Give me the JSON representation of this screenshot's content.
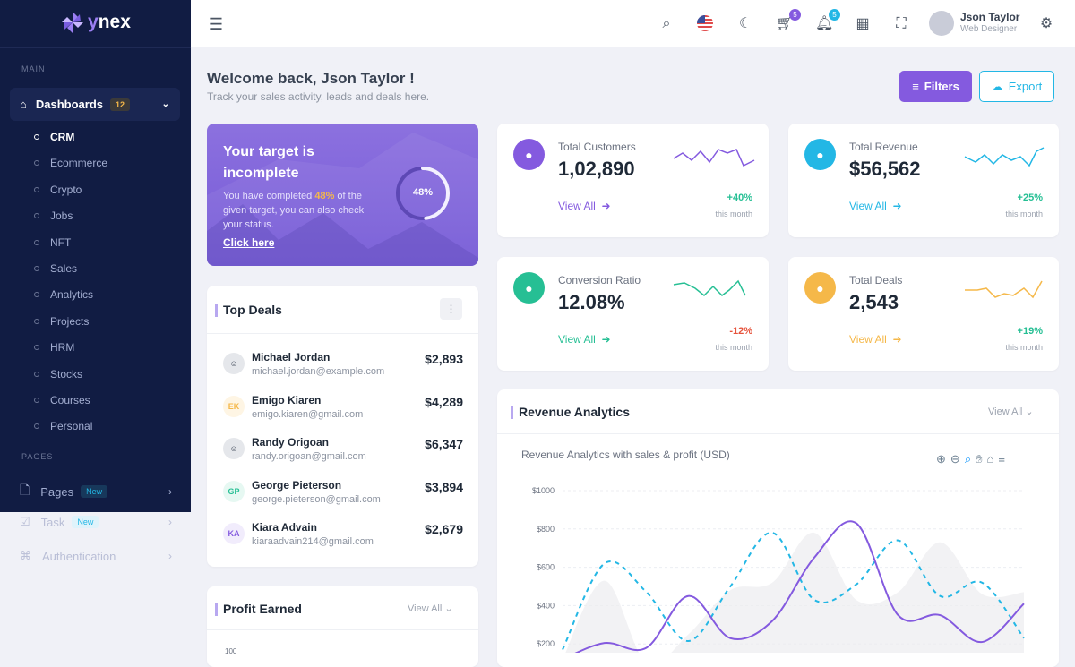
{
  "brand": {
    "name_prefix": "y",
    "name": "nex"
  },
  "sidebar": {
    "main_label": "MAIN",
    "dashboards": {
      "label": "Dashboards",
      "badge": "12"
    },
    "sub_items": [
      {
        "label": "CRM",
        "active": true
      },
      {
        "label": "Ecommerce"
      },
      {
        "label": "Crypto"
      },
      {
        "label": "Jobs"
      },
      {
        "label": "NFT"
      },
      {
        "label": "Sales"
      },
      {
        "label": "Analytics"
      },
      {
        "label": "Projects"
      },
      {
        "label": "HRM"
      },
      {
        "label": "Stocks"
      },
      {
        "label": "Courses"
      },
      {
        "label": "Personal"
      }
    ],
    "pages_label": "PAGES",
    "pages_items": [
      {
        "label": "Pages",
        "badge": "New",
        "icon": "file-icon"
      },
      {
        "label": "Task",
        "badge": "New",
        "icon": "task-icon"
      },
      {
        "label": "Authentication",
        "icon": "fingerprint-icon"
      }
    ]
  },
  "header": {
    "cart_count": "5",
    "notif_count": "5",
    "user_name": "Json Taylor",
    "user_role": "Web Designer"
  },
  "welcome": {
    "title": "Welcome back, Json Taylor !",
    "subtitle": "Track your sales activity, leads and deals here.",
    "filters": "Filters",
    "export": "Export"
  },
  "target": {
    "title": "Your target is incomplete",
    "text_pre": "You have completed ",
    "pct_text": "48%",
    "text_post": " of the given target, you can also check your status.",
    "link": "Click here",
    "progress": 48
  },
  "stats": [
    {
      "label": "Total Customers",
      "value": "1,02,890",
      "link": "View All",
      "change": "+40%",
      "period": "this month",
      "color": "#845adf",
      "change_color": "#26bf94",
      "icon": "users-icon"
    },
    {
      "label": "Total Revenue",
      "value": "$56,562",
      "link": "View All",
      "change": "+25%",
      "period": "this month",
      "color": "#23b7e5",
      "change_color": "#26bf94",
      "icon": "wallet-icon"
    },
    {
      "label": "Conversion Ratio",
      "value": "12.08%",
      "link": "View All",
      "change": "-12%",
      "period": "this month",
      "color": "#26bf94",
      "change_color": "#e6533c",
      "icon": "wave-icon"
    },
    {
      "label": "Total Deals",
      "value": "2,543",
      "link": "View All",
      "change": "+19%",
      "period": "this month",
      "color": "#f5b849",
      "change_color": "#26bf94",
      "icon": "briefcase-icon"
    }
  ],
  "top_deals": {
    "title": "Top Deals",
    "items": [
      {
        "name": "Michael Jordan",
        "email": "michael.jordan@example.com",
        "amount": "$2,893",
        "initials": "",
        "bg": "#e5e7eb",
        "fg": "#374151"
      },
      {
        "name": "Emigo Kiaren",
        "email": "emigo.kiaren@gmail.com",
        "amount": "$4,289",
        "initials": "EK",
        "bg": "#fef5e4",
        "fg": "#f5b849"
      },
      {
        "name": "Randy Origoan",
        "email": "randy.origoan@gmail.com",
        "amount": "$6,347",
        "initials": "",
        "bg": "#e5e7eb",
        "fg": "#374151"
      },
      {
        "name": "George Pieterson",
        "email": "george.pieterson@gmail.com",
        "amount": "$3,894",
        "initials": "GP",
        "bg": "#e6f8f2",
        "fg": "#26bf94"
      },
      {
        "name": "Kiara Advain",
        "email": "kiaraadvain214@gmail.com",
        "amount": "$2,679",
        "initials": "KA",
        "bg": "#f1ecfc",
        "fg": "#845adf"
      }
    ]
  },
  "profit": {
    "title": "Profit Earned",
    "view_all": "View All",
    "first_tick": "100"
  },
  "revenue": {
    "title": "Revenue Analytics",
    "view_all": "View All",
    "subtitle": "Revenue Analytics with sales & profit (USD)"
  },
  "chart_data": {
    "type": "line",
    "title": "Revenue Analytics with sales & profit (USD)",
    "ylim": [
      0,
      1000
    ],
    "yticks": [
      "$1000",
      "$800",
      "$600",
      "$400",
      "$200"
    ],
    "grid": true,
    "series": [
      {
        "style": "solid",
        "color": "#845adf",
        "values": [
          120,
          205,
          180,
          450,
          230,
          320,
          650,
          830,
          350,
          350,
          210,
          410
        ]
      },
      {
        "style": "dashed",
        "color": "#23b7e5",
        "values": [
          170,
          620,
          470,
          215,
          500,
          780,
          430,
          510,
          740,
          450,
          520,
          230
        ]
      },
      {
        "style": "area",
        "color": "#ececef",
        "values": [
          120,
          530,
          100,
          250,
          480,
          520,
          780,
          430,
          470,
          730,
          460,
          470
        ]
      }
    ]
  }
}
